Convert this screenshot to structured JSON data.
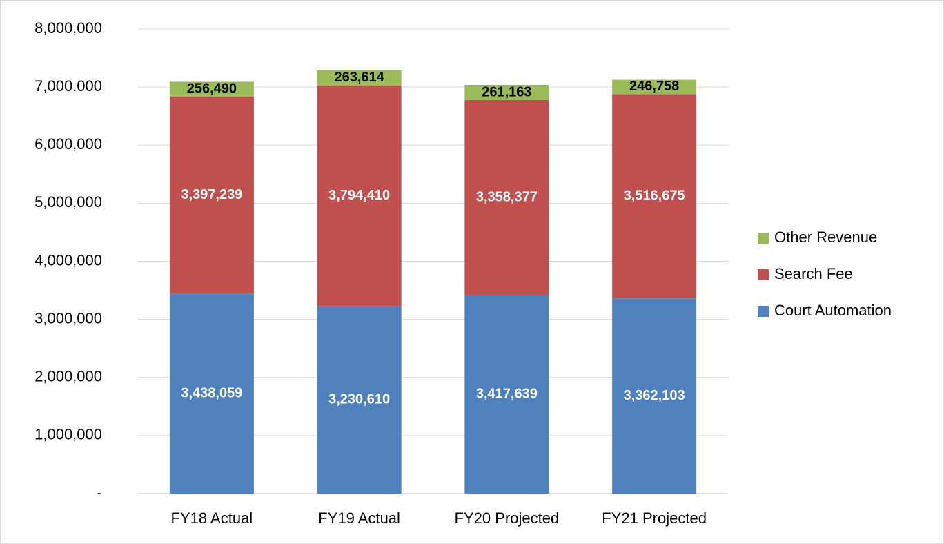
{
  "chart_data": {
    "type": "stacked_bar",
    "categories": [
      "FY18 Actual",
      "FY19 Actual",
      "FY20 Projected",
      "FY21 Projected"
    ],
    "series": [
      {
        "name": "Court Automation",
        "color": "#4f81bd",
        "label_color": "#ffffff",
        "values": [
          3438059,
          3230610,
          3417639,
          3362103
        ],
        "value_labels": [
          "3,438,059",
          "3,230,610",
          "3,417,639",
          "3,362,103"
        ]
      },
      {
        "name": "Search Fee",
        "color": "#c0504d",
        "label_color": "#ffffff",
        "values": [
          3397239,
          3794410,
          3358377,
          3516675
        ],
        "value_labels": [
          "3,397,239",
          "3,794,410",
          "3,358,377",
          "3,516,675"
        ]
      },
      {
        "name": "Other Revenue",
        "color": "#9bbb59",
        "label_color": "#000000",
        "values": [
          256490,
          263614,
          261163,
          246758
        ],
        "value_labels": [
          "256,490",
          "263,614",
          "261,163",
          "246,758"
        ]
      }
    ],
    "ylim": [
      0,
      8000000
    ],
    "yticks": [
      {
        "value": 0,
        "label": "-"
      },
      {
        "value": 1000000,
        "label": "1,000,000"
      },
      {
        "value": 2000000,
        "label": "2,000,000"
      },
      {
        "value": 3000000,
        "label": "3,000,000"
      },
      {
        "value": 4000000,
        "label": "4,000,000"
      },
      {
        "value": 5000000,
        "label": "5,000,000"
      },
      {
        "value": 6000000,
        "label": "6,000,000"
      },
      {
        "value": 7000000,
        "label": "7,000,000"
      },
      {
        "value": 8000000,
        "label": "8,000,000"
      }
    ],
    "grid": true,
    "legend": "right"
  }
}
